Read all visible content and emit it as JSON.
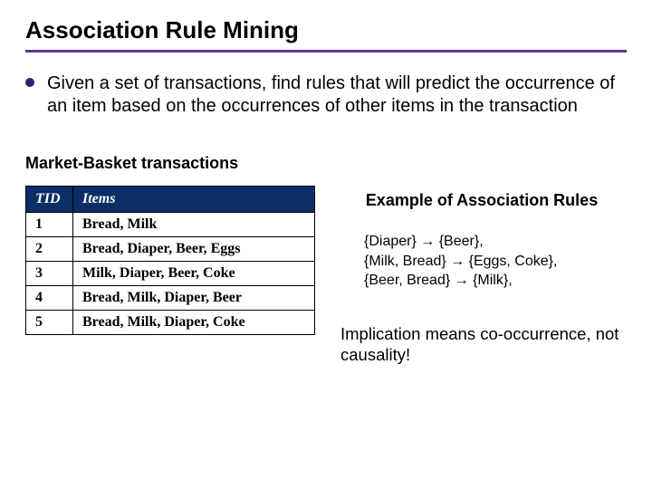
{
  "title": "Association Rule Mining",
  "underline_color": "#663399",
  "main_point": "Given a set of transactions, find rules that will predict the occurrence of an item based on the occurrences of other items in the transaction",
  "subtitle": "Market-Basket transactions",
  "table": {
    "header_bg": "#0b2e66",
    "header_color": "#ffffff",
    "columns": [
      "TID",
      "Items"
    ],
    "rows": [
      [
        "1",
        "Bread, Milk"
      ],
      [
        "2",
        "Bread, Diaper, Beer, Eggs"
      ],
      [
        "3",
        "Milk, Diaper, Beer, Coke"
      ],
      [
        "4",
        "Bread, Milk, Diaper, Beer"
      ],
      [
        "5",
        "Bread, Milk, Diaper, Coke"
      ]
    ]
  },
  "example_heading": "Example of Association Rules",
  "rules": [
    "{Diaper} → {Beer},",
    "{Milk, Bread} → {Eggs, Coke},",
    "{Beer, Bread} → {Milk},"
  ],
  "implication_note": "Implication means co-occurrence, not causality!"
}
